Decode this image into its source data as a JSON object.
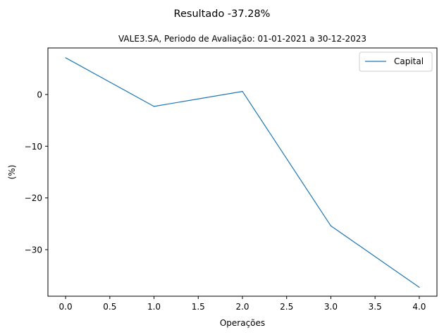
{
  "chart_data": {
    "type": "line",
    "title": "Resultado -37.28%",
    "subtitle": "VALE3.SA, Periodo de Avaliação: 01-01-2021 a 30-12-2023",
    "xlabel": "Operações",
    "ylabel": "(%)",
    "xlim": [
      -0.2,
      4.2
    ],
    "ylim": [
      -39.0,
      9.0
    ],
    "xticks": [
      0.0,
      0.5,
      1.0,
      1.5,
      2.0,
      2.5,
      3.0,
      3.5,
      4.0
    ],
    "xtick_labels": [
      "0.0",
      "0.5",
      "1.0",
      "1.5",
      "2.0",
      "2.5",
      "3.0",
      "3.5",
      "4.0"
    ],
    "yticks": [
      0,
      -10,
      -20,
      -30
    ],
    "ytick_labels": [
      "0",
      "−10",
      "−20",
      "−30"
    ],
    "grid": false,
    "legend_position": "top-right",
    "series": [
      {
        "name": "Capital",
        "color": "#1f77b4",
        "x": [
          0,
          1,
          2,
          3,
          4
        ],
        "y": [
          7.1,
          -2.3,
          0.6,
          -25.4,
          -37.28
        ]
      }
    ]
  }
}
